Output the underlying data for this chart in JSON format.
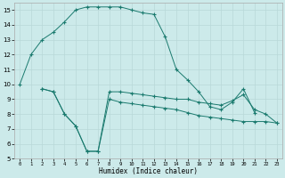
{
  "xlabel": "Humidex (Indice chaleur)",
  "bg_color": "#cceaea",
  "line_color": "#1a7a6e",
  "grid_color": "#b8d8d8",
  "xlim": [
    -0.5,
    23.5
  ],
  "ylim": [
    5,
    15.5
  ],
  "xticks": [
    0,
    1,
    2,
    3,
    4,
    5,
    6,
    7,
    8,
    9,
    10,
    11,
    12,
    13,
    14,
    15,
    16,
    17,
    18,
    19,
    20,
    21,
    22,
    23
  ],
  "yticks": [
    5,
    6,
    7,
    8,
    9,
    10,
    11,
    12,
    13,
    14,
    15
  ],
  "line1_x": [
    0,
    1,
    2,
    3,
    4,
    5,
    6,
    7,
    8,
    9,
    10,
    11,
    12,
    13,
    14,
    15,
    16,
    17,
    18,
    19,
    20,
    21
  ],
  "line1_y": [
    10,
    12,
    13,
    13.5,
    14.2,
    15.0,
    15.2,
    15.2,
    15.2,
    15.2,
    15.0,
    14.8,
    14.7,
    13.2,
    11.0,
    10.3,
    9.5,
    8.5,
    8.3,
    8.8,
    9.7,
    8.1
  ],
  "line2_x": [
    2,
    3,
    4,
    5,
    6,
    7,
    8,
    9,
    10,
    11,
    12,
    13,
    14,
    15,
    16,
    17,
    18,
    19,
    20,
    21,
    22,
    23
  ],
  "line2_y": [
    9.7,
    9.5,
    8.0,
    7.2,
    5.5,
    5.5,
    9.5,
    9.5,
    9.4,
    9.3,
    9.2,
    9.1,
    9.0,
    9.0,
    8.8,
    8.7,
    8.6,
    8.9,
    9.3,
    8.3,
    8.0,
    7.4
  ],
  "line3_x": [
    2,
    3,
    4,
    5,
    6,
    7,
    8,
    9,
    10,
    11,
    12,
    13,
    14,
    15,
    16,
    17,
    18,
    19,
    20,
    21,
    22,
    23
  ],
  "line3_y": [
    9.7,
    9.5,
    8.0,
    7.2,
    5.5,
    5.5,
    9.0,
    8.8,
    8.7,
    8.6,
    8.5,
    8.4,
    8.3,
    8.1,
    7.9,
    7.8,
    7.7,
    7.6,
    7.5,
    7.5,
    7.5,
    7.4
  ]
}
